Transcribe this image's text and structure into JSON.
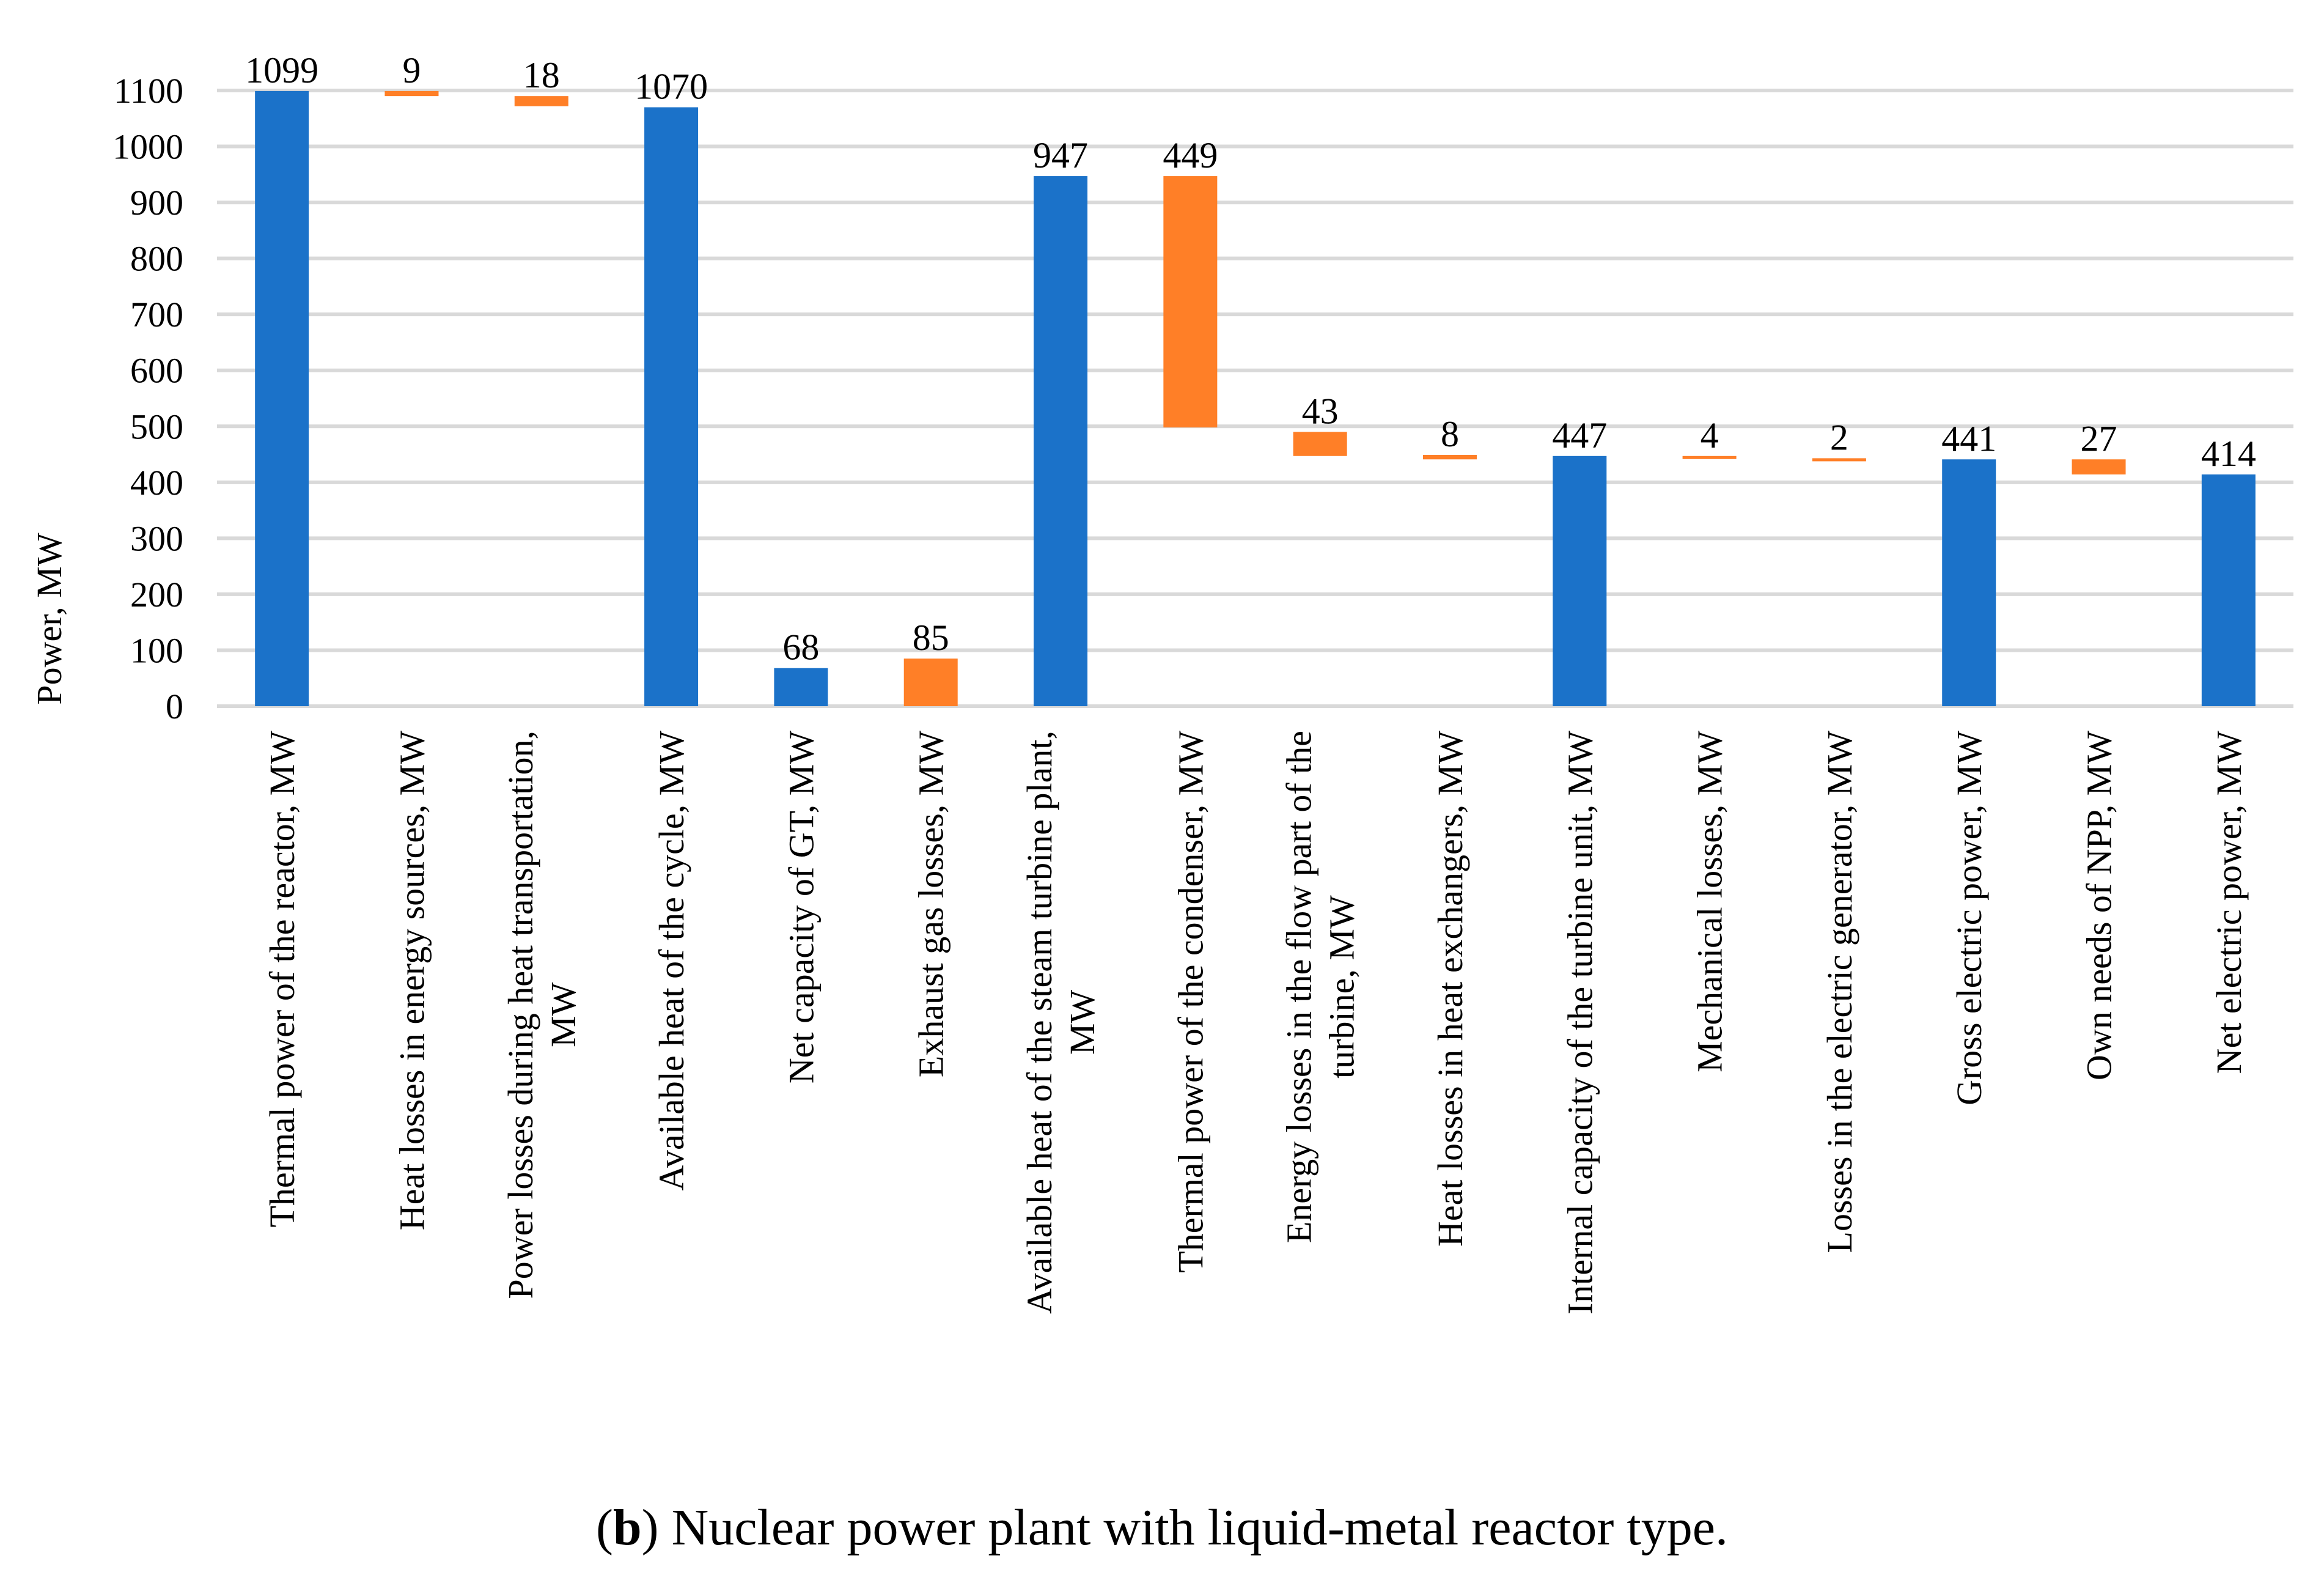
{
  "chart_data": {
    "type": "waterfall-bar",
    "title": "",
    "ylabel": "Power, MW",
    "xlabel": "",
    "ylim": [
      0,
      1100
    ],
    "yticks": [
      0,
      100,
      200,
      300,
      400,
      500,
      600,
      700,
      800,
      900,
      1000,
      1100
    ],
    "grid": true,
    "colors": {
      "total": "#1b72c9",
      "loss": "#ff7f27"
    },
    "bars": [
      {
        "label": "Thermal power of the reactor, MW",
        "label_lines": [
          "Thermal power of the reactor, MW"
        ],
        "value": 1099,
        "base": 0,
        "kind": "total"
      },
      {
        "label": "Heat losses in energy sources, MW",
        "label_lines": [
          "Heat losses in energy sources, MW"
        ],
        "value": 9,
        "base": 1090,
        "kind": "loss"
      },
      {
        "label": "Power losses during heat transportation, MW",
        "label_lines": [
          "Power losses during heat transportation,",
          "MW"
        ],
        "value": 18,
        "base": 1072,
        "kind": "loss"
      },
      {
        "label": "Available heat of the cycle, MW",
        "label_lines": [
          "Available heat of the cycle, MW"
        ],
        "value": 1070,
        "base": 0,
        "kind": "total"
      },
      {
        "label": "Net capacity of GT, MW",
        "label_lines": [
          "Net capacity of GT, MW"
        ],
        "value": 68,
        "base": 0,
        "kind": "total"
      },
      {
        "label": "Exhaust gas losses, MW",
        "label_lines": [
          "Exhaust gas losses, MW"
        ],
        "value": 85,
        "base": 0,
        "kind": "loss"
      },
      {
        "label": "Available heat of the steam turbine plant, MW",
        "label_lines": [
          "Available heat of the steam turbine plant,",
          "MW"
        ],
        "value": 947,
        "base": 0,
        "kind": "total"
      },
      {
        "label": "Thermal power of the condenser, MW",
        "label_lines": [
          "Thermal power of the condenser, MW"
        ],
        "value": 449,
        "base": 498,
        "kind": "loss"
      },
      {
        "label": "Energy losses in the flow part of the turbine, MW",
        "label_lines": [
          "Energy losses in the flow part of the",
          "turbine, MW"
        ],
        "value": 43,
        "base": 447,
        "kind": "loss"
      },
      {
        "label": "Heat losses in heat exchangers, MW",
        "label_lines": [
          "Heat losses in heat exchangers, MW"
        ],
        "value": 8,
        "base": 441,
        "kind": "loss"
      },
      {
        "label": "Internal capacity of the turbine unit, MW",
        "label_lines": [
          "Internal capacity of the turbine unit, MW"
        ],
        "value": 447,
        "base": 0,
        "kind": "total"
      },
      {
        "label": "Mechanical losses, MW",
        "label_lines": [
          "Mechanical losses, MW"
        ],
        "value": 4,
        "base": 443,
        "kind": "loss"
      },
      {
        "label": "Losses in the electric generator, MW",
        "label_lines": [
          "Losses in the electric generator, MW"
        ],
        "value": 2,
        "base": 441,
        "kind": "loss"
      },
      {
        "label": "Gross electric power, MW",
        "label_lines": [
          "Gross electric power, MW"
        ],
        "value": 441,
        "base": 0,
        "kind": "total"
      },
      {
        "label": "Own needs of NPP, MW",
        "label_lines": [
          "Own needs of NPP, MW"
        ],
        "value": 27,
        "base": 414,
        "kind": "loss"
      },
      {
        "label": "Net electric power, MW",
        "label_lines": [
          "Net electric power, MW"
        ],
        "value": 414,
        "base": 0,
        "kind": "total"
      }
    ]
  },
  "caption": {
    "open_paren": "(",
    "letter": "b",
    "text": ") Nuclear power plant with liquid-metal reactor type."
  }
}
